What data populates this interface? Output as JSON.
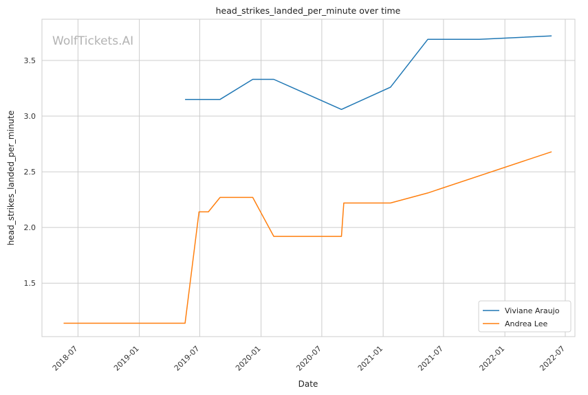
{
  "chart_data": {
    "type": "line",
    "title": "head_strikes_landed_per_minute over time",
    "xlabel": "Date",
    "ylabel": "head_strikes_landed_per_minute",
    "watermark": "WolfTickets.AI",
    "x_tick_labels": [
      "2018-07",
      "2019-01",
      "2019-07",
      "2020-01",
      "2020-07",
      "2021-01",
      "2021-07",
      "2022-01",
      "2022-07"
    ],
    "x_ticks": [
      "2018-07-01",
      "2019-01-01",
      "2019-07-01",
      "2020-01-01",
      "2020-07-01",
      "2021-01-01",
      "2021-07-01",
      "2022-01-01",
      "2022-07-01"
    ],
    "y_ticks": [
      1.5,
      2.0,
      2.5,
      3.0,
      3.5
    ],
    "y_tick_labels": [
      "1.5",
      "2.0",
      "2.5",
      "3.0",
      "3.5"
    ],
    "xlim": [
      "2018-03-15",
      "2022-07-30"
    ],
    "ylim": [
      1.02,
      3.87
    ],
    "grid": true,
    "legend_position": "bottom-right",
    "series": [
      {
        "name": "Viviane Araujo",
        "color": "#1f77b4",
        "points": [
          {
            "x": "2019-05-18",
            "y": 3.15
          },
          {
            "x": "2019-08-31",
            "y": 3.15
          },
          {
            "x": "2019-12-07",
            "y": 3.33
          },
          {
            "x": "2020-02-08",
            "y": 3.33
          },
          {
            "x": "2020-08-29",
            "y": 3.06
          },
          {
            "x": "2021-01-23",
            "y": 3.26
          },
          {
            "x": "2021-05-15",
            "y": 3.69
          },
          {
            "x": "2021-10-16",
            "y": 3.69
          },
          {
            "x": "2022-05-21",
            "y": 3.72
          }
        ]
      },
      {
        "name": "Andrea Lee",
        "color": "#ff7f0e",
        "points": [
          {
            "x": "2018-05-19",
            "y": 1.14
          },
          {
            "x": "2019-05-18",
            "y": 1.14
          },
          {
            "x": "2019-06-29",
            "y": 2.14
          },
          {
            "x": "2019-07-27",
            "y": 2.14
          },
          {
            "x": "2019-08-31",
            "y": 2.27
          },
          {
            "x": "2019-12-07",
            "y": 2.27
          },
          {
            "x": "2020-02-08",
            "y": 1.92
          },
          {
            "x": "2020-08-29",
            "y": 1.92
          },
          {
            "x": "2020-09-05",
            "y": 2.22
          },
          {
            "x": "2021-01-23",
            "y": 2.22
          },
          {
            "x": "2021-05-15",
            "y": 2.31
          },
          {
            "x": "2022-05-21",
            "y": 2.68
          }
        ]
      }
    ]
  }
}
